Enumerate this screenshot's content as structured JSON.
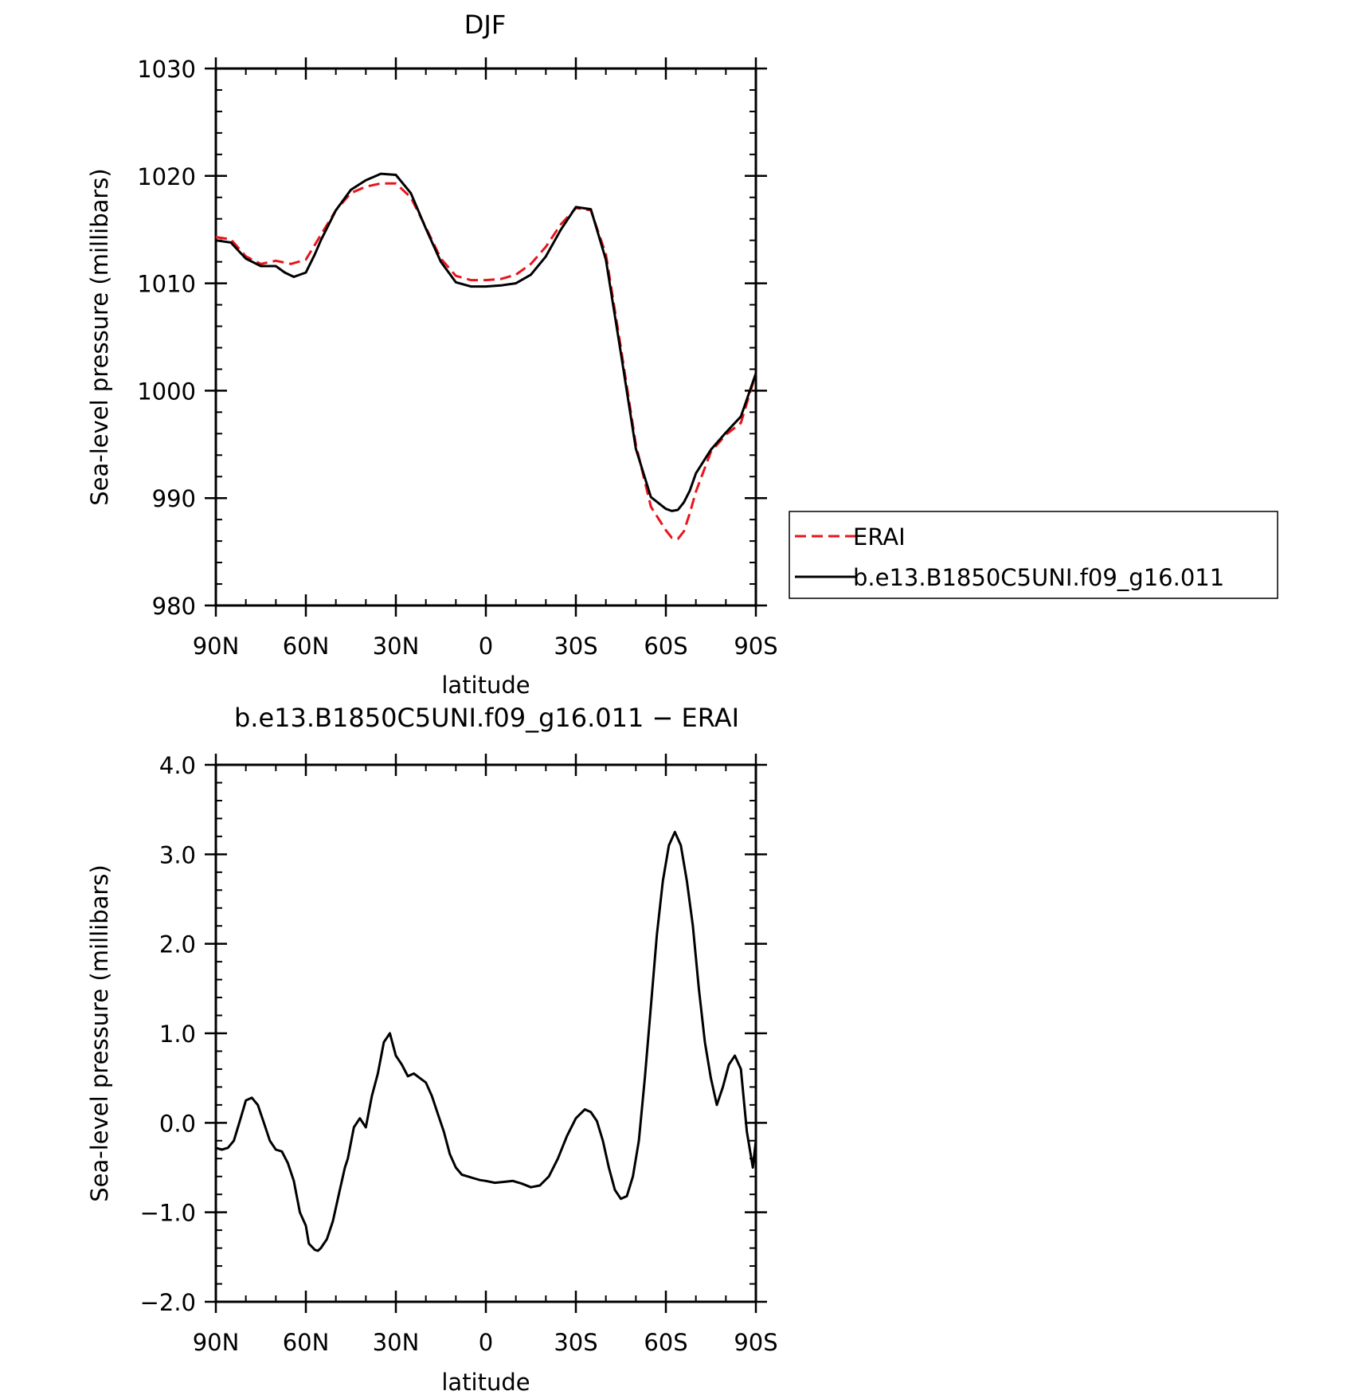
{
  "chart_data": [
    {
      "type": "line",
      "title": "DJF",
      "xlabel": "latitude",
      "ylabel": "Sea-level pressure (millibars)",
      "xlim": [
        90,
        -90
      ],
      "ylim": [
        980,
        1030
      ],
      "x_ticks": [
        90,
        60,
        30,
        0,
        -30,
        -60,
        -90
      ],
      "x_tick_labels": [
        "90N",
        "60N",
        "30N",
        "0",
        "30S",
        "60S",
        "90S"
      ],
      "y_ticks": [
        980,
        990,
        1000,
        1010,
        1020,
        1030
      ],
      "y_tick_labels": [
        "980",
        "990",
        "1000",
        "1010",
        "1020",
        "1030"
      ],
      "legend": "right",
      "series": [
        {
          "name": "ERAI",
          "color": "#e8141c",
          "dash": true,
          "x": [
            90,
            85,
            80,
            75,
            70,
            65,
            60,
            55,
            50,
            45,
            40,
            35,
            30,
            25,
            20,
            15,
            10,
            5,
            0,
            -5,
            -10,
            -15,
            -20,
            -25,
            -30,
            -35,
            -40,
            -45,
            -50,
            -55,
            -60,
            -62,
            -64,
            -66,
            -68,
            -70,
            -75,
            -80,
            -85,
            -90
          ],
          "values": [
            1014.3,
            1014.1,
            1012.5,
            1011.8,
            1012.1,
            1011.8,
            1012.2,
            1014.5,
            1016.8,
            1018.4,
            1019.0,
            1019.3,
            1019.3,
            1018.0,
            1015.2,
            1012.3,
            1010.7,
            1010.3,
            1010.3,
            1010.4,
            1010.8,
            1011.8,
            1013.4,
            1015.5,
            1017.0,
            1016.8,
            1012.7,
            1004.0,
            995.0,
            989.2,
            987.0,
            986.3,
            986.2,
            986.9,
            988.6,
            990.6,
            994.3,
            995.9,
            997.0,
            1001.6
          ]
        },
        {
          "name": "b.e13.B1850C5UNI.f09_g16.011",
          "color": "#000000",
          "dash": false,
          "x": [
            90,
            85,
            80,
            75,
            70,
            67,
            64,
            60,
            57,
            55,
            50,
            45,
            40,
            35,
            30,
            25,
            20,
            15,
            10,
            5,
            0,
            -5,
            -10,
            -15,
            -20,
            -25,
            -30,
            -35,
            -40,
            -45,
            -50,
            -55,
            -60,
            -62,
            -64,
            -66,
            -68,
            -70,
            -75,
            -80,
            -85,
            -90
          ],
          "values": [
            1014.0,
            1013.8,
            1012.3,
            1011.6,
            1011.6,
            1011.0,
            1010.6,
            1011.0,
            1012.7,
            1014.0,
            1016.8,
            1018.7,
            1019.6,
            1020.2,
            1020.1,
            1018.4,
            1015.1,
            1012.0,
            1010.1,
            1009.7,
            1009.7,
            1009.8,
            1010.0,
            1010.8,
            1012.5,
            1015.0,
            1017.1,
            1016.9,
            1012.2,
            1003.5,
            994.6,
            990.1,
            989.0,
            988.8,
            988.9,
            989.6,
            990.7,
            992.3,
            994.5,
            996.1,
            997.6,
            1001.6
          ]
        }
      ]
    },
    {
      "type": "line",
      "title": "b.e13.B1850C5UNI.f09_g16.011 − ERAI",
      "xlabel": "latitude",
      "ylabel": "Sea-level pressure (millibars)",
      "xlim": [
        90,
        -90
      ],
      "ylim": [
        -2,
        4
      ],
      "x_ticks": [
        90,
        60,
        30,
        0,
        -30,
        -60,
        -90
      ],
      "x_tick_labels": [
        "90N",
        "60N",
        "30N",
        "0",
        "30S",
        "60S",
        "90S"
      ],
      "y_ticks": [
        -2,
        -1,
        0,
        1,
        2,
        3,
        4
      ],
      "y_tick_labels": [
        "−2.0",
        "−1.0",
        "0.0",
        "1.0",
        "2.0",
        "3.0",
        "4.0"
      ],
      "series": [
        {
          "color": "#000000",
          "dash": false,
          "x": [
            90,
            88,
            86,
            84,
            82,
            80,
            78,
            76,
            74,
            72,
            70,
            68,
            66,
            64,
            62,
            60,
            59,
            57,
            56,
            55,
            53,
            51,
            49,
            47,
            46,
            44,
            42,
            40,
            38,
            36,
            34,
            32,
            30,
            28,
            26,
            24,
            22,
            20,
            18,
            16,
            14,
            12,
            10,
            8,
            6,
            4,
            2,
            0,
            -3,
            -6,
            -9,
            -12,
            -15,
            -18,
            -21,
            -24,
            -27,
            -30,
            -33,
            -35,
            -37,
            -39,
            -41,
            -43,
            -45,
            -47,
            -49,
            -51,
            -53,
            -55,
            -57,
            -59,
            -61,
            -63,
            -65,
            -67,
            -69,
            -71,
            -73,
            -75,
            -77,
            -79,
            -81,
            -83,
            -85,
            -87,
            -89,
            -90
          ],
          "values": [
            -0.28,
            -0.3,
            -0.28,
            -0.2,
            0.02,
            0.25,
            0.28,
            0.2,
            0.0,
            -0.2,
            -0.3,
            -0.32,
            -0.45,
            -0.65,
            -1.0,
            -1.15,
            -1.35,
            -1.42,
            -1.43,
            -1.4,
            -1.3,
            -1.1,
            -0.8,
            -0.5,
            -0.4,
            -0.05,
            0.05,
            -0.05,
            0.3,
            0.55,
            0.9,
            1.0,
            0.75,
            0.65,
            0.52,
            0.55,
            0.5,
            0.45,
            0.3,
            0.1,
            -0.1,
            -0.35,
            -0.5,
            -0.58,
            -0.6,
            -0.62,
            -0.64,
            -0.65,
            -0.67,
            -0.66,
            -0.65,
            -0.68,
            -0.72,
            -0.7,
            -0.6,
            -0.4,
            -0.15,
            0.05,
            0.15,
            0.12,
            0.02,
            -0.2,
            -0.5,
            -0.75,
            -0.85,
            -0.82,
            -0.6,
            -0.2,
            0.5,
            1.3,
            2.1,
            2.7,
            3.1,
            3.25,
            3.1,
            2.7,
            2.2,
            1.5,
            0.9,
            0.5,
            0.2,
            0.4,
            0.65,
            0.75,
            0.6,
            -0.1,
            -0.5,
            -0.2
          ]
        }
      ]
    }
  ],
  "legend": {
    "series_a_label": "ERAI",
    "series_b_label": "b.e13.B1850C5UNI.f09_g16.011"
  }
}
